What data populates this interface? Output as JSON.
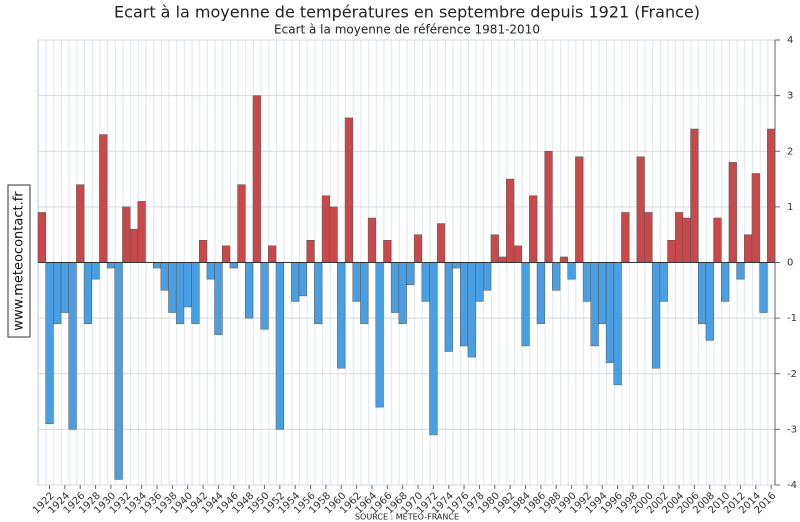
{
  "chart_data": {
    "type": "bar",
    "title": "Ecart à la moyenne de températures en septembre depuis 1921 (France)",
    "subtitle": "Ecart à la moyenne de référence 1981-2010",
    "source": "SOURCE : METEO-FRANCE",
    "watermark": "www.meteocontact.fr",
    "categories": [
      null,
      "1922",
      null,
      "1924",
      null,
      "1926",
      null,
      "1928",
      null,
      "1930",
      null,
      "1932",
      null,
      "1934",
      null,
      "1936",
      null,
      "1938",
      null,
      "1940",
      null,
      "1942",
      null,
      "1944",
      null,
      "1946",
      null,
      "1948",
      null,
      "1950",
      null,
      "1952",
      null,
      "1954",
      null,
      "1956",
      null,
      "1958",
      null,
      "1960",
      null,
      "1962",
      null,
      "1964",
      null,
      "1966",
      null,
      "1968",
      null,
      "1970",
      null,
      "1972",
      null,
      "1974",
      null,
      "1976",
      null,
      "1978",
      null,
      "1980",
      null,
      "1982",
      null,
      "1984",
      null,
      "1986",
      null,
      "1988",
      null,
      "1990",
      null,
      "1992",
      null,
      "1994",
      null,
      "1996",
      null,
      "1998",
      null,
      "2000",
      null,
      "2002",
      null,
      "2004",
      null,
      "2006",
      null,
      "2008",
      null,
      "2010",
      null,
      "2012",
      null,
      "2014",
      null,
      "2016"
    ],
    "values": [
      0.9,
      -2.9,
      -1.1,
      -0.9,
      -3.0,
      1.4,
      -1.1,
      -0.3,
      2.3,
      -0.1,
      -3.9,
      1.0,
      0.6,
      1.1,
      0,
      -0.1,
      -0.5,
      -0.9,
      -1.1,
      -0.8,
      -1.1,
      0.4,
      -0.3,
      -1.3,
      0.3,
      -0.1,
      1.4,
      -1.0,
      3.0,
      -1.2,
      0.3,
      -3.0,
      0,
      -0.7,
      -0.6,
      0.4,
      -1.1,
      1.2,
      1.0,
      -1.9,
      2.6,
      -0.7,
      -1.1,
      0.8,
      -2.6,
      0.4,
      -0.9,
      -1.1,
      -0.4,
      0.5,
      -0.7,
      -3.1,
      0.7,
      -1.6,
      -0.1,
      -1.5,
      -1.7,
      -0.7,
      -0.5,
      0.5,
      0.1,
      1.5,
      0.3,
      -1.5,
      1.2,
      -1.1,
      2.0,
      -0.5,
      0.1,
      -0.3,
      1.9,
      -0.7,
      -1.5,
      -1.1,
      -1.8,
      -2.2,
      0.9,
      0,
      1.9,
      0.9,
      -1.9,
      -0.7,
      0.4,
      0.9,
      0.8,
      2.4,
      -1.1,
      -1.4,
      0.8,
      -0.7,
      1.8,
      -0.3,
      0.5,
      1.6,
      -0.9,
      2.4
    ],
    "colors": {
      "positive": "#c9494a",
      "negative": "#4a9fe3"
    },
    "ylim": [
      -4,
      4
    ],
    "yticks": [
      -4,
      -3,
      -2,
      -1,
      0,
      1,
      2,
      3,
      4
    ],
    "y_axis_side": "right",
    "grid": true
  }
}
